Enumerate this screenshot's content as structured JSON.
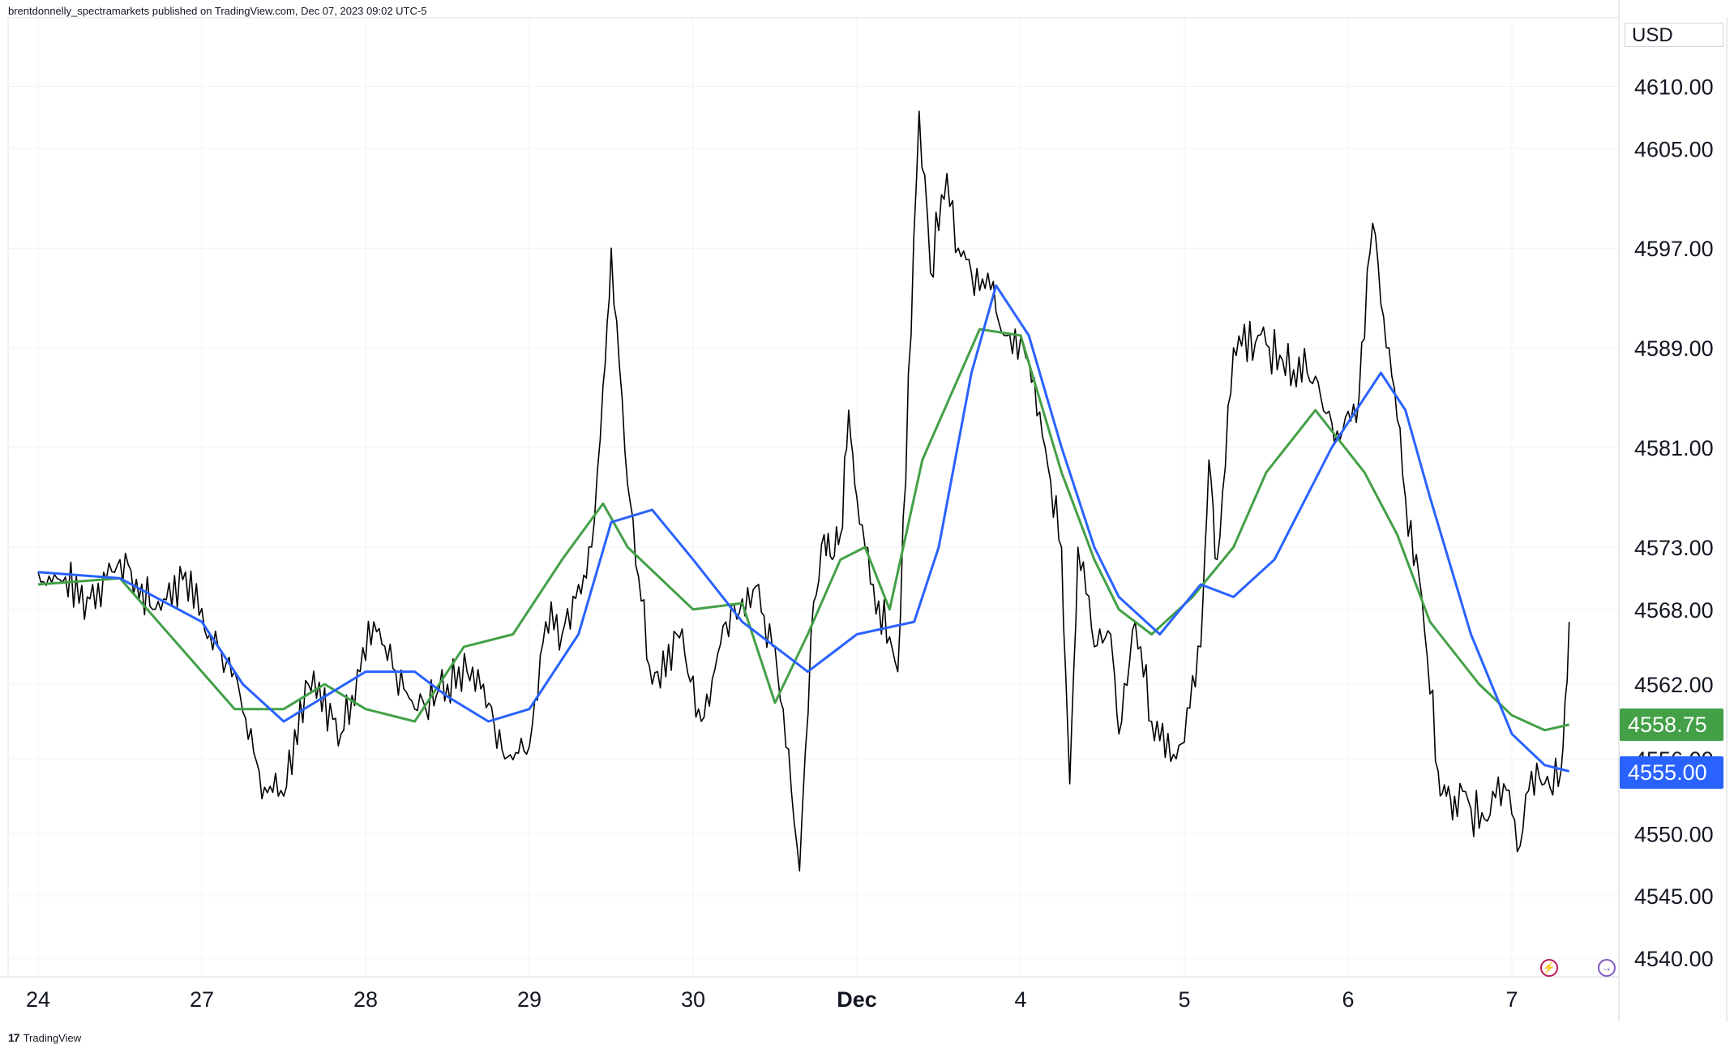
{
  "header": {
    "publisher_text": "brentdonnelly_spectramarkets published on TradingView.com, Dec 07, 2023 09:02 UTC-5"
  },
  "footer": {
    "logo_mark": "17",
    "logo_text": "TradingView"
  },
  "icons": {
    "lightning": "lightning-icon",
    "arrow": "arrow-right-icon"
  },
  "chart_data": {
    "type": "line",
    "currency": "USD",
    "price_scale_ticks": [
      "4610.00",
      "4605.00",
      "4597.00",
      "4589.00",
      "4581.00",
      "4573.00",
      "4568.00",
      "4562.00",
      "4556.00",
      "4550.00",
      "4545.00",
      "4540.00"
    ],
    "x_tick_labels": [
      "24",
      "27",
      "28",
      "29",
      "30",
      "Dec",
      "4",
      "5",
      "6",
      "7"
    ],
    "ylim": [
      4538.5,
      4615.5
    ],
    "grid": true,
    "current_labels": [
      {
        "name": "green-ma",
        "value": "4558.75",
        "color": "#43a047"
      },
      {
        "name": "blue-ma",
        "value": "4555.00",
        "color": "#2962ff"
      }
    ],
    "series": [
      {
        "role": "price",
        "color": "#000000",
        "x": [
          0,
          0.3,
          0.5,
          0.7,
          0.9,
          1.05,
          1.2,
          1.35,
          1.5,
          1.65,
          1.85,
          2.05,
          2.3,
          2.5,
          2.62,
          2.72,
          2.85,
          3,
          3.1,
          3.2,
          3.3,
          3.38,
          3.45,
          3.5,
          3.6,
          3.75,
          3.9,
          4.05,
          4.2,
          4.4,
          4.55,
          4.65,
          4.72,
          4.8,
          4.85,
          4.9,
          4.95,
          5,
          5.1,
          5.25,
          5.38,
          5.45,
          5.55,
          5.62,
          5.7,
          5.8,
          5.9,
          6.05,
          6.15,
          6.25,
          6.3,
          6.35,
          6.45,
          6.55,
          6.6,
          6.7,
          6.8,
          6.95,
          7.1,
          7.15,
          7.2,
          7.3,
          7.45,
          7.6,
          7.75,
          7.9,
          8.05,
          8.15,
          8.25,
          8.35,
          8.45,
          8.55,
          8.6,
          8.65,
          8.75,
          8.85,
          8.95,
          9.05,
          9.12,
          9.2,
          9.3,
          9.35
        ],
        "values": [
          4571,
          4569,
          4572,
          4568,
          4571,
          4566,
          4563,
          4555,
          4553,
          4562,
          4558,
          4567,
          4560,
          4562,
          4563,
          4562,
          4556,
          4557,
          4567,
          4566,
          4570,
          4573,
          4586,
          4597,
          4578,
          4562,
          4566,
          4559,
          4567,
          4570,
          4560,
          4547,
          4566,
          4574,
          4572,
          4574,
          4584,
          4577,
          4570,
          4563,
          4608,
          4595,
          4603,
          4597,
          4595,
          4595,
          4590,
          4588,
          4581,
          4573,
          4554,
          4573,
          4565,
          4566,
          4558,
          4567,
          4559,
          4556,
          4565,
          4580,
          4572,
          4589,
          4590,
          4588,
          4587,
          4583,
          4583,
          4599,
          4589,
          4577,
          4569,
          4555,
          4553,
          4553,
          4552,
          4551,
          4554,
          4549,
          4555,
          4554,
          4555,
          4567
        ]
      },
      {
        "role": "moving-average",
        "color": "#43a047",
        "x": [
          0,
          0.5,
          1.0,
          1.2,
          1.5,
          1.75,
          2.0,
          2.3,
          2.6,
          2.9,
          3.2,
          3.45,
          3.6,
          4.0,
          4.3,
          4.5,
          4.7,
          4.9,
          5.05,
          5.2,
          5.4,
          5.75,
          6.0,
          6.25,
          6.45,
          6.6,
          6.8,
          7.05,
          7.3,
          7.5,
          7.8,
          8.1,
          8.3,
          8.5,
          8.8,
          9.0,
          9.2,
          9.35
        ],
        "values": [
          4570,
          4570.5,
          4563,
          4560,
          4560,
          4562,
          4560,
          4559,
          4565,
          4566,
          4572,
          4576.5,
          4573,
          4568,
          4568.5,
          4560.5,
          4566,
          4572,
          4573,
          4568,
          4580,
          4590.5,
          4590,
          4579,
          4572,
          4568,
          4566,
          4569,
          4573,
          4579,
          4584,
          4579,
          4574,
          4567,
          4562,
          4559.5,
          4558.3,
          4558.75
        ]
      },
      {
        "role": "moving-average",
        "color": "#2962ff",
        "x": [
          0,
          0.5,
          1.0,
          1.25,
          1.5,
          1.75,
          2.0,
          2.3,
          2.5,
          2.75,
          3.0,
          3.3,
          3.5,
          3.75,
          4.0,
          4.3,
          4.7,
          5.0,
          5.35,
          5.5,
          5.7,
          5.85,
          6.05,
          6.25,
          6.45,
          6.6,
          6.85,
          7.1,
          7.3,
          7.55,
          7.9,
          8.2,
          8.35,
          8.5,
          8.75,
          9.0,
          9.2,
          9.35
        ],
        "values": [
          4571,
          4570.5,
          4567,
          4562,
          4559,
          4561,
          4563,
          4563,
          4561,
          4559,
          4560,
          4566,
          4575,
          4576,
          4572,
          4567,
          4563,
          4566,
          4567,
          4573,
          4587,
          4594,
          4590,
          4581,
          4573,
          4569,
          4566,
          4570,
          4569,
          4572,
          4581,
          4587,
          4584,
          4577,
          4566,
          4558,
          4555.5,
          4555
        ]
      }
    ]
  }
}
